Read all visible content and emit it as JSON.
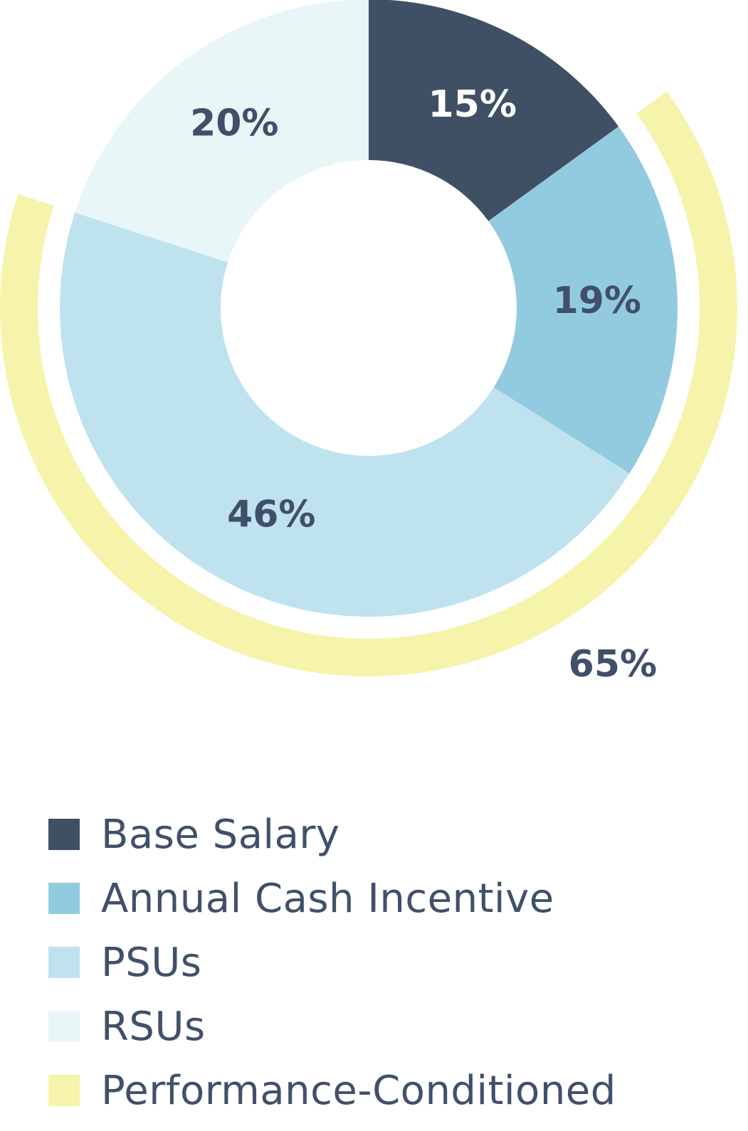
{
  "chart_data": {
    "type": "pie",
    "title": "",
    "slices": [
      {
        "name": "Base Salary",
        "value": 15,
        "label": "15%",
        "color": "#405064",
        "label_color": "#ffffff"
      },
      {
        "name": "Annual Cash Incentive",
        "value": 19,
        "label": "19%",
        "color": "#92cbe0",
        "label_color": "#41506a"
      },
      {
        "name": "PSUs",
        "value": 46,
        "label": "46%",
        "color": "#bfe2ef",
        "label_color": "#41506a"
      },
      {
        "name": "RSUs",
        "value": 20,
        "label": "20%",
        "color": "#e8f6f7",
        "label_color": "#41506a"
      }
    ],
    "overlay_arc": {
      "name": "Performance-Conditioned",
      "value": 65,
      "label": "65%",
      "color": "#f6f3ab",
      "label_color": "#41506a"
    },
    "legend": {
      "position": "bottom-left",
      "items": [
        {
          "label": "Base Salary",
          "color": "#405064"
        },
        {
          "label": "Annual Cash Incentive",
          "color": "#92cbe0"
        },
        {
          "label": "PSUs",
          "color": "#bfe2ef"
        },
        {
          "label": "RSUs",
          "color": "#e8f6f7"
        },
        {
          "label": "Performance-Conditioned",
          "color": "#f6f3ab"
        }
      ]
    }
  }
}
